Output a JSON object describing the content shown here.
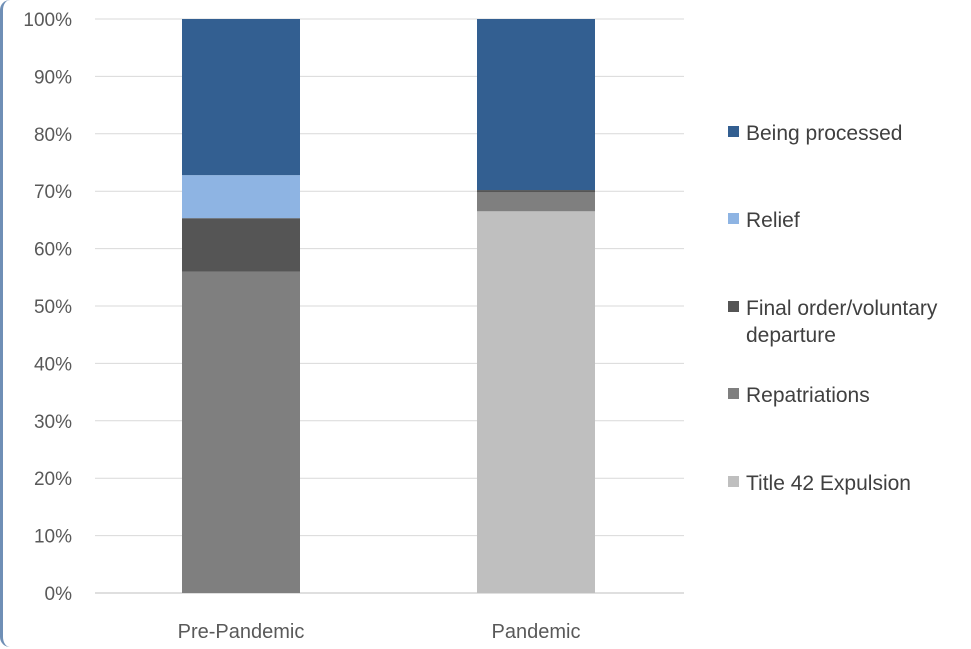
{
  "chart_data": {
    "type": "bar",
    "stacked": true,
    "percent_stacked": true,
    "categories": [
      "Pre-Pandemic",
      "Pandemic"
    ],
    "series": [
      {
        "name": "Title 42 Expulsion",
        "color": "#bfbfbf",
        "values": [
          0,
          66.5
        ]
      },
      {
        "name": "Repatriations",
        "color": "#7f7f7f",
        "values": [
          56,
          3.3
        ]
      },
      {
        "name": "Final order/voluntary departure",
        "color": "#555555",
        "values": [
          9.3,
          0.4
        ]
      },
      {
        "name": "Relief",
        "color": "#8eb4e3",
        "values": [
          7.5,
          0
        ]
      },
      {
        "name": "Being processed",
        "color": "#335f91",
        "values": [
          27.2,
          29.8
        ]
      }
    ],
    "legend_order": [
      "Being processed",
      "Relief",
      "Final order/voluntary departure",
      "Repatriations",
      "Title 42 Expulsion"
    ],
    "y_ticks": [
      "0%",
      "10%",
      "20%",
      "30%",
      "40%",
      "50%",
      "60%",
      "70%",
      "80%",
      "90%",
      "100%"
    ],
    "ylim": [
      0,
      100
    ],
    "grid": true,
    "legend_position": "right"
  }
}
